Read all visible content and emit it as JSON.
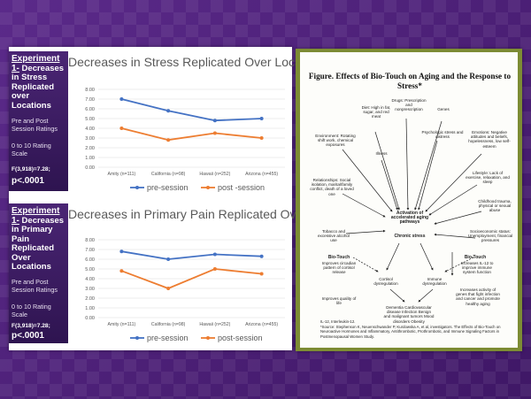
{
  "experiment1": {
    "heading_exp": "Experiment",
    "heading_num": "1-",
    "heading_text": "Decreases in Stress Replicated over Locations",
    "ratings": "Pre and Post Session Ratings",
    "scale": "0 to 10 Rating Scale",
    "fstat": "F(3,918)=7.28;",
    "p": "p<.0001"
  },
  "experiment2": {
    "heading_exp": "Experiment",
    "heading_num": "1-",
    "heading_text": "Decreases in Primary Pain Replicated Over Locations",
    "ratings": "Pre and Post Session Ratings",
    "scale": "0 to 10 Rating Scale",
    "fstat": "F(3,918)=7.28;",
    "p": "p<.0001"
  },
  "chart_data": [
    {
      "type": "line",
      "title": "Decreases in Stress Replicated Over Locations",
      "categories": [
        "Amity (n=111)",
        "California (n=98)",
        "Hawaii (n=252)",
        "Arizona (n=455)"
      ],
      "series": [
        {
          "name": "pre-session",
          "color": "#4472c4",
          "values": [
            7.0,
            5.8,
            4.8,
            5.0
          ]
        },
        {
          "name": "post -session",
          "color": "#ed7d31",
          "values": [
            4.0,
            2.8,
            3.5,
            3.0
          ]
        }
      ],
      "ylim": [
        0,
        8
      ],
      "yticks": [
        "0.00",
        "1.00",
        "2.00",
        "3.00",
        "4.00",
        "5.00",
        "6.00",
        "7.00",
        "8.00"
      ],
      "grid": true,
      "legend": "bottom"
    },
    {
      "type": "line",
      "title": "Decreases in Primary Pain Replicated Over Loctions",
      "categories": [
        "Amity (n=111)",
        "California (n=98)",
        "Hawaii (n=252)",
        "Arizona (n=455)"
      ],
      "series": [
        {
          "name": "pre-session",
          "color": "#4472c4",
          "values": [
            6.8,
            6.0,
            6.5,
            6.3
          ]
        },
        {
          "name": "post-session",
          "color": "#ed7d31",
          "values": [
            4.8,
            3.0,
            5.0,
            4.5
          ]
        }
      ],
      "ylim": [
        0,
        8
      ],
      "yticks": [
        "0.00",
        "1.00",
        "2.00",
        "3.00",
        "4.00",
        "5.00",
        "6.00",
        "7.00",
        "8.00"
      ],
      "grid": true,
      "legend": "bottom"
    }
  ],
  "figure": {
    "title": "Figure. Effects of Bio-Touch on Aging and the Response to Stress*",
    "nodes": {
      "drugs": "Drugs: Prescription and nonprescription",
      "diet": "Diet: High in fat, sugar, and red meat",
      "genes": "Genes",
      "environment": "Environment: Rotating shift work, chemical exposures",
      "psych": "Psychologic stress and distress",
      "emotions": "Emotions: Negative attitudes and beliefs, hopelessness, low self-esteem",
      "illness": "Illness",
      "lifestyle": "Lifestyle: Lack of exercise, relaxation, and sleep",
      "relationships": "Relationships: Social isolation, marital/family conflict, death of a loved one",
      "childhood": "Childhood trauma, physical or sexual abuse",
      "center1": "Activation of accelerated aging pathways",
      "center2": "Chronic stress",
      "tobacco": "Tobacco and excessive alcohol use",
      "socio": "Socioeconomic status: Unemployment, financial pressures",
      "biotouch_left": "Bio-Touch",
      "biotouch_left_text": "Improves circadian pattern of cortisol release",
      "quality": "Improves quality of life",
      "biotouch_right": "Bio-Touch",
      "biotouch_right_text": "Increases IL-12 to improve immune system function",
      "cortisol": "Cortisol dysregulation",
      "immune": "Immune dysregulation",
      "increases": "Increases activity of genes that fight infection and cancer and promote healthy aging",
      "outcomes": "Dementia Cardiovascular disease Infection Benign and malignant tumors Mood disorders Obesity"
    },
    "footnote": "IL-12, Interleukin-12.",
    "source": "*Source: Stephenson K, Neuenschwander P, Kurdowska A, et al, investigators. The Effects of Bio-Touch on Neuroactive Hormones and Inflammatory, Antithrombotic, Prothrombotic, and Immune Signaling Factors in Postmenopausal Women Study."
  }
}
